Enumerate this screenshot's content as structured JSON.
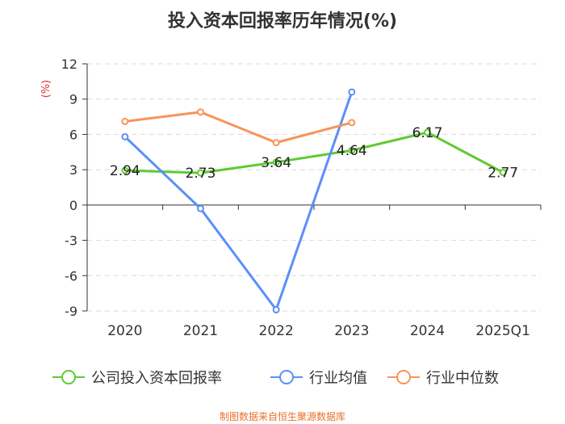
{
  "chart_data": {
    "type": "line",
    "title": "投入资本回报率历年情况(%)",
    "ylabel": "(%)",
    "xlabel": "",
    "categories": [
      "2020",
      "2021",
      "2022",
      "2023",
      "2024",
      "2025Q1"
    ],
    "ylim": [
      -9,
      12
    ],
    "yticks": [
      12,
      9,
      6,
      3,
      0,
      -3,
      -6,
      -9
    ],
    "grid": true,
    "legend_position": "bottom",
    "series": [
      {
        "name": "公司投入资本回报率",
        "color": "#5ecb32",
        "values": [
          2.94,
          2.73,
          3.64,
          4.64,
          6.17,
          2.77
        ],
        "labels": [
          "2.94",
          "2.73",
          "3.64",
          "4.64",
          "6.17",
          "2.77"
        ]
      },
      {
        "name": "行业均值",
        "color": "#5b8ff9",
        "values": [
          5.8,
          -0.3,
          -8.9,
          9.6,
          null,
          null
        ]
      },
      {
        "name": "行业中位数",
        "color": "#f7945a",
        "values": [
          7.1,
          7.9,
          5.3,
          7.0,
          null,
          null
        ]
      }
    ]
  },
  "footer": {
    "text": "制图数据来自恒生聚源数据库",
    "color": "#e8702a"
  },
  "axis_label_color": "#e03030"
}
